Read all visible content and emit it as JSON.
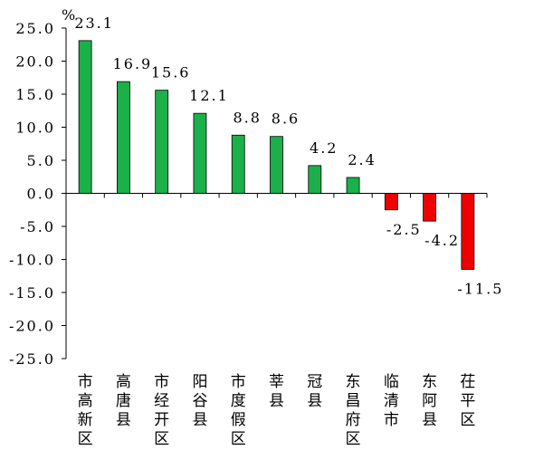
{
  "chart_data": {
    "type": "bar",
    "unit": "%",
    "categories": [
      "市高新区",
      "高唐县",
      "市经开区",
      "阳谷县",
      "市度假区",
      "莘县",
      "冠县",
      "东昌府区",
      "临清市",
      "东阿县",
      "茌平区"
    ],
    "values": [
      23.1,
      16.9,
      15.6,
      12.1,
      8.8,
      8.6,
      4.2,
      2.4,
      -2.5,
      -4.2,
      -11.5
    ],
    "value_labels": [
      "23.1",
      "16.9",
      "15.6",
      "12.1",
      "8.8",
      "8.6",
      "4.2",
      "2.4",
      "-2.5",
      "-4.2",
      "-11.5"
    ],
    "ylim": [
      -25.0,
      25.0
    ],
    "yticks": [
      "25.0",
      "20.0",
      "15.0",
      "10.0",
      "5.0",
      "0.0",
      "-5.0",
      "-10.0",
      "-15.0",
      "-20.0",
      "-25.0"
    ],
    "grid": false,
    "legend": "none",
    "colors": {
      "positive": "#1bb04a",
      "negative": "#ee0000",
      "axis": "#000000"
    }
  }
}
